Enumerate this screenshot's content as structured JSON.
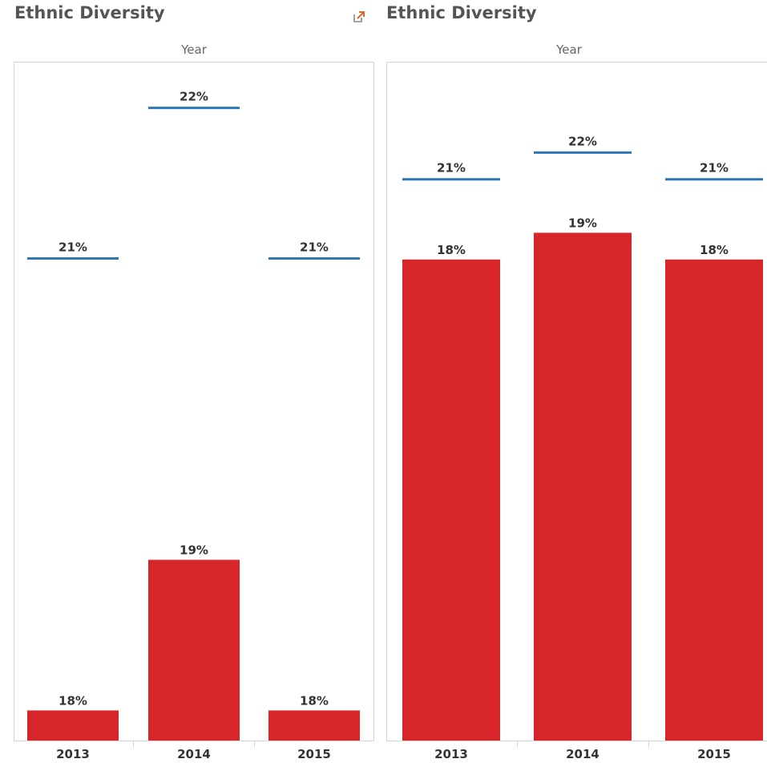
{
  "colors": {
    "bar": "#d7262a",
    "reference_line": "#2b78b4",
    "panel_border": "#d4d4d4",
    "title": "#555555"
  },
  "icons": {
    "popout": "external-link-icon"
  },
  "chart_data": [
    {
      "type": "bar",
      "title": "Ethnic Diversity",
      "column_header": "Year",
      "categories": [
        "2013",
        "2014",
        "2015"
      ],
      "series": [
        {
          "values": [
            18,
            19,
            18
          ],
          "labels": [
            "18%",
            "19%",
            "18%"
          ]
        },
        {
          "values": [
            21,
            22,
            21
          ],
          "labels": [
            "21%",
            "22%",
            "21%"
          ],
          "mark": "reference-line"
        }
      ],
      "ylim": [
        17.8,
        22.2
      ],
      "grid": false
    },
    {
      "type": "bar",
      "title": "Ethnic Diversity",
      "column_header": "Year",
      "categories": [
        "2013",
        "2014",
        "2015"
      ],
      "series": [
        {
          "values": [
            18,
            19,
            18
          ],
          "labels": [
            "18%",
            "19%",
            "18%"
          ]
        },
        {
          "values": [
            21,
            22,
            21
          ],
          "labels": [
            "21%",
            "22%",
            "21%"
          ],
          "mark": "reference-line"
        }
      ],
      "ylim": [
        0,
        24.8
      ],
      "grid": false
    }
  ]
}
